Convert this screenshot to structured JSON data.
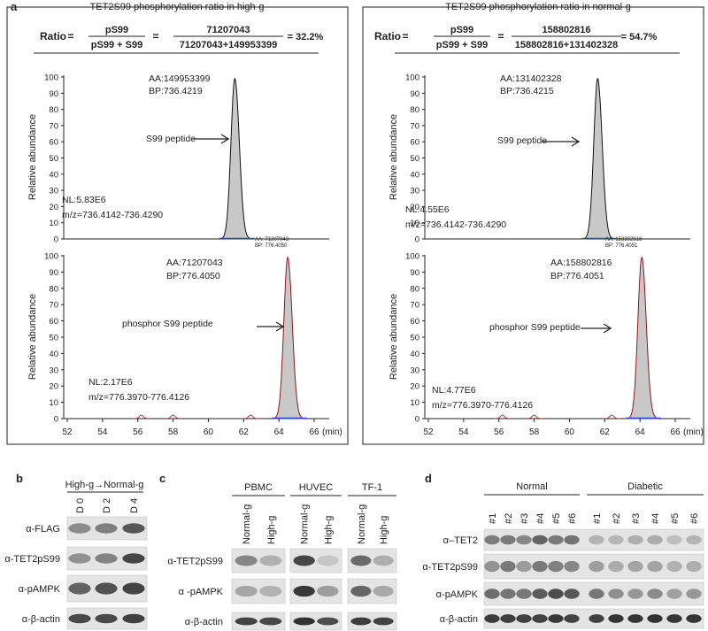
{
  "panel_a": {
    "label": "a",
    "y_axis_label": "Relative abundance",
    "yticks": [
      0,
      10,
      20,
      30,
      40,
      50,
      60,
      70,
      80,
      90,
      100
    ],
    "xticks": [
      52,
      54,
      56,
      58,
      60,
      62,
      64,
      66
    ],
    "x_unit": "(min)",
    "plots": [
      {
        "title": "TET2S99 phosphorylation ratio in high-g",
        "ratio_label": "Ratio",
        "equals": "=",
        "numerator": "pS99",
        "denominator": "pS99 + S99",
        "count_numerator": "71207043",
        "count_denominator": "71207043+149953399",
        "result": "= 32.2%",
        "upper": {
          "aa": "AA:149953399",
          "bp": "BP:736.4219",
          "peptide": "S99 peptide",
          "nl": "NL:5.83E6",
          "mz": "m/z=736.4142-736.4290"
        },
        "peak_header": {
          "aa": "AA: 71207043",
          "bp": "BP: 776.4050"
        },
        "lower": {
          "aa": "AA:71207043",
          "bp": "BP:776.4050",
          "peptide": "phosphor S99 peptide",
          "nl": "NL:2.17E6",
          "mz": "m/z=776.3970-776.4126"
        }
      },
      {
        "title": "TET2S99 phosphorylation ratio in normal-g",
        "ratio_label": "Ratio",
        "equals": "=",
        "numerator": "pS99",
        "denominator": "pS99 + S99",
        "count_numerator": "158802816",
        "count_denominator": "158802816+131402328",
        "result": "= 54.7%",
        "upper": {
          "aa": "AA:131402328",
          "bp": "BP:736.4215",
          "peptide": "S99 peptide",
          "nl": "NL:4.55E6",
          "mz": "m/z=736.4142-736.4290"
        },
        "peak_header": {
          "aa": "AA: 158802816",
          "bp": "BP: 776.4051"
        },
        "lower": {
          "aa": "AA:158802816",
          "bp": "BP:776.4051",
          "peptide": "phosphor S99 peptide",
          "nl": "NL:4.77E6",
          "mz": "m/z=776.3970-776.4126"
        }
      }
    ]
  },
  "panel_b": {
    "label": "b",
    "header": "High-g→Normal-g",
    "lanes": [
      "D 0",
      "D 2",
      "D 4"
    ],
    "rows": [
      "α-FLAG",
      "α-TET2pS99",
      "α-pAMPK",
      "α-β-actin"
    ]
  },
  "panel_c": {
    "label": "c",
    "groups": [
      {
        "name": "PBMC",
        "lanes": [
          "Normal-g",
          "High-g"
        ]
      },
      {
        "name": "HUVEC",
        "lanes": [
          "Normal-g",
          "High-g"
        ]
      },
      {
        "name": "TF-1",
        "lanes": [
          "Normal-g",
          "High-g"
        ]
      }
    ],
    "rows": [
      "α-TET2pS99",
      "α -pAMPK",
      "α-β-actin"
    ]
  },
  "panel_d": {
    "label": "d",
    "groups": [
      {
        "name": "Normal",
        "lanes": [
          "#1",
          "#2",
          "#3",
          "#4",
          "#5",
          "#6"
        ]
      },
      {
        "name": "Diabetic",
        "lanes": [
          "#1",
          "#2",
          "#3",
          "#4",
          "#5",
          "#6"
        ]
      }
    ],
    "rows": [
      "α–TET2",
      "α-TET2pS99",
      "α-pAMPK",
      "α-β-actin"
    ]
  }
}
